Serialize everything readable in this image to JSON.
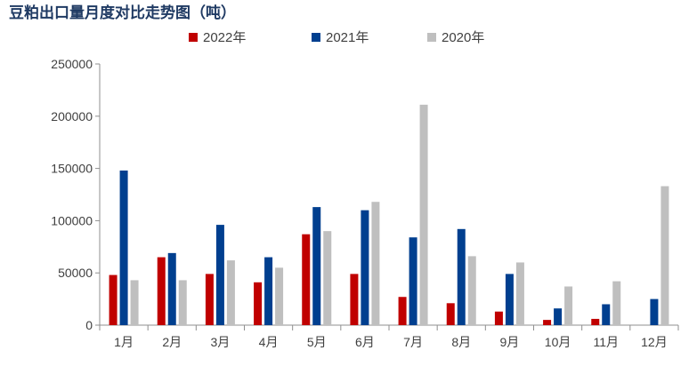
{
  "chart_data": {
    "type": "bar",
    "title": "豆粕出口量月度对比走势图（吨）",
    "categories": [
      "1月",
      "2月",
      "3月",
      "4月",
      "5月",
      "6月",
      "7月",
      "8月",
      "9月",
      "10月",
      "11月",
      "12月"
    ],
    "series": [
      {
        "name": "2022年",
        "color": "#c00000",
        "values": [
          48000,
          65000,
          49000,
          41000,
          87000,
          49000,
          27000,
          21000,
          13000,
          5000,
          6000,
          null
        ]
      },
      {
        "name": "2021年",
        "color": "#003f8f",
        "values": [
          148000,
          69000,
          96000,
          65000,
          113000,
          110000,
          84000,
          92000,
          49000,
          16000,
          20000,
          25000
        ]
      },
      {
        "name": "2020年",
        "color": "#bfbfbf",
        "values": [
          43000,
          43000,
          62000,
          55000,
          90000,
          118000,
          211000,
          66000,
          60000,
          37000,
          42000,
          133000
        ]
      }
    ],
    "yticks": [
      "0",
      "50000",
      "100000",
      "150000",
      "200000",
      "250000"
    ],
    "ylim": [
      0,
      250000
    ],
    "xlabel": "",
    "ylabel": "",
    "grid": false,
    "legend": "top"
  }
}
